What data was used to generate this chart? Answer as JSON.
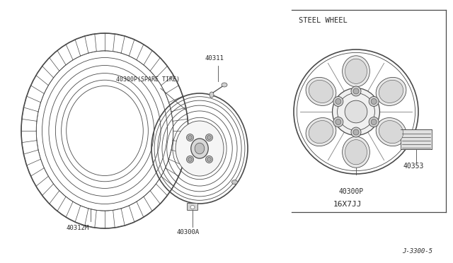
{
  "bg_color": "#ffffff",
  "line_color": "#4a4a4a",
  "title": "STEEL WHEEL",
  "part_number_tire": "40312M",
  "part_number_wheel_spare": "40300P(SPARE TIRE)",
  "part_number_valve": "40311",
  "part_number_wheel_bolt": "40300A",
  "part_number_wheel_front": "40300P",
  "part_number_wheel_size": "16X7JJ",
  "part_number_cap": "40353",
  "diagram_id": "J-3300-5",
  "white": "#ffffff",
  "dark": "#2a2a2a",
  "gray": "#aaaaaa",
  "light_gray": "#e0e0e0"
}
